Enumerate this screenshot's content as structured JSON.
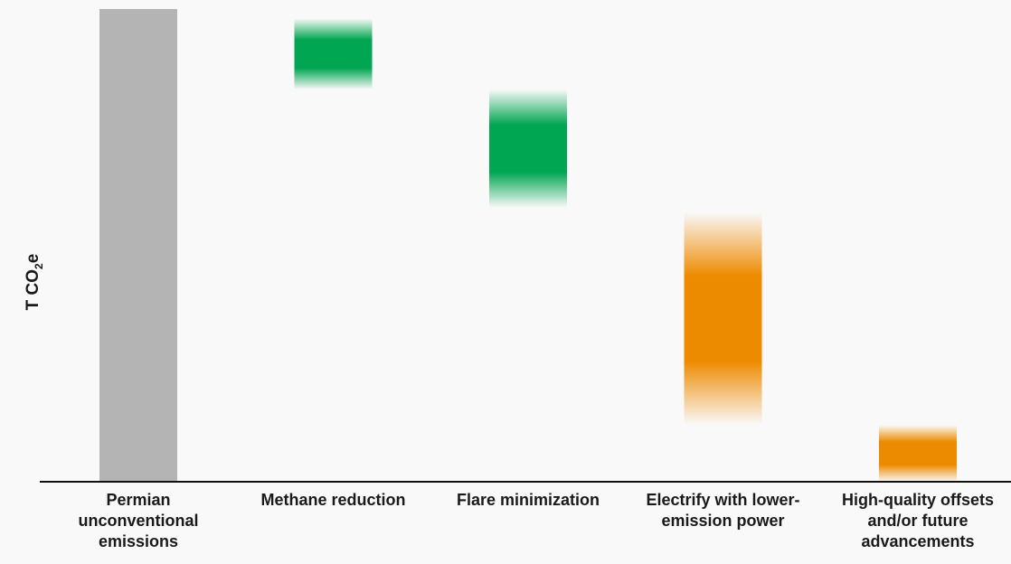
{
  "chart_data": {
    "type": "bar",
    "subtype": "waterfall",
    "ylabel": {
      "prefix": "T CO",
      "subscript": "2",
      "suffix": "e"
    },
    "categories": [
      "Permian unconventional emissions",
      "Methane reduction",
      "Flare minimization",
      "Electrify with lower-emission power",
      "High-quality offsets and/or future advancements"
    ],
    "category_label_lines": [
      [
        "Permian",
        "unconventional",
        "emissions"
      ],
      [
        "Methane reduction"
      ],
      [
        "Flare minimization"
      ],
      [
        "Electrify with lower-",
        "emission power"
      ],
      [
        "High-quality offsets",
        "and/or future",
        "advancements"
      ]
    ],
    "ranges": [
      {
        "category": "Permian unconventional emissions",
        "low": 0,
        "high": 100,
        "style": "solid",
        "color": "#b4b4b4"
      },
      {
        "category": "Methane reduction",
        "low": 83,
        "high": 98,
        "style": "gradient",
        "color": "#00a651"
      },
      {
        "category": "Flare minimization",
        "low": 58,
        "high": 83,
        "style": "gradient",
        "color": "#00a651"
      },
      {
        "category": "Electrify with lower-emission power",
        "low": 12,
        "high": 57,
        "style": "gradient",
        "color": "#ed8b00"
      },
      {
        "category": "High-quality offsets and/or future advancements",
        "low": 0,
        "high": 12,
        "style": "gradient",
        "color": "#ed8b00"
      }
    ],
    "ylim": [
      0,
      100
    ],
    "grid": false,
    "legend": "none"
  }
}
